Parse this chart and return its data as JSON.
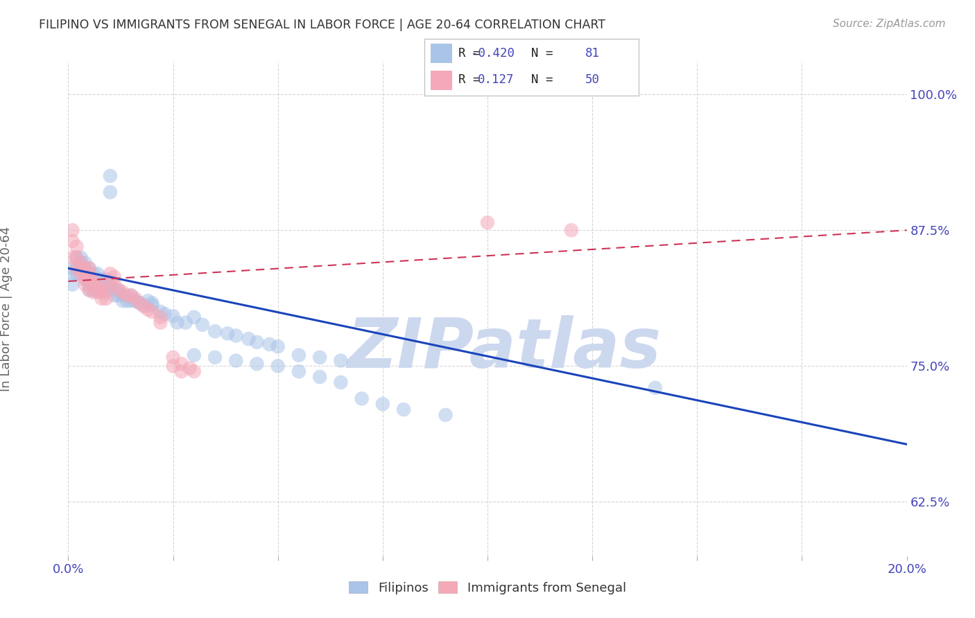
{
  "title": "FILIPINO VS IMMIGRANTS FROM SENEGAL IN LABOR FORCE | AGE 20-64 CORRELATION CHART",
  "source": "Source: ZipAtlas.com",
  "ylabel": "In Labor Force | Age 20-64",
  "xlim": [
    0.0,
    0.2
  ],
  "ylim": [
    0.575,
    1.03
  ],
  "yticks": [
    0.625,
    0.75,
    0.875,
    1.0
  ],
  "ytick_labels": [
    "62.5%",
    "75.0%",
    "87.5%",
    "100.0%"
  ],
  "xticks": [
    0.0,
    0.025,
    0.05,
    0.075,
    0.1,
    0.125,
    0.15,
    0.175,
    0.2
  ],
  "xtick_labels": [
    "0.0%",
    "",
    "",
    "",
    "",
    "",
    "",
    "",
    "20.0%"
  ],
  "blue_color": "#aac4e8",
  "pink_color": "#f4a8b8",
  "blue_line_color": "#1a44bb",
  "pink_line_color": "#cc3355",
  "watermark": "ZIPatlas",
  "legend_R_blue": "-0.420",
  "legend_N_blue": "81",
  "legend_R_pink": "0.127",
  "legend_N_pink": "50",
  "blue_scatter_x": [
    0.001,
    0.001,
    0.001,
    0.002,
    0.002,
    0.002,
    0.003,
    0.003,
    0.003,
    0.003,
    0.004,
    0.004,
    0.004,
    0.004,
    0.005,
    0.005,
    0.005,
    0.005,
    0.005,
    0.006,
    0.006,
    0.006,
    0.006,
    0.007,
    0.007,
    0.007,
    0.007,
    0.008,
    0.008,
    0.008,
    0.009,
    0.009,
    0.009,
    0.01,
    0.01,
    0.01,
    0.011,
    0.011,
    0.012,
    0.012,
    0.013,
    0.013,
    0.014,
    0.015,
    0.015,
    0.016,
    0.017,
    0.018,
    0.019,
    0.02,
    0.02,
    0.022,
    0.023,
    0.025,
    0.026,
    0.028,
    0.03,
    0.032,
    0.035,
    0.038,
    0.04,
    0.043,
    0.045,
    0.048,
    0.05,
    0.055,
    0.06,
    0.065,
    0.03,
    0.035,
    0.04,
    0.045,
    0.05,
    0.055,
    0.06,
    0.065,
    0.07,
    0.075,
    0.08,
    0.09,
    0.14
  ],
  "blue_scatter_y": [
    0.84,
    0.835,
    0.825,
    0.85,
    0.84,
    0.835,
    0.85,
    0.845,
    0.84,
    0.835,
    0.845,
    0.84,
    0.835,
    0.83,
    0.84,
    0.835,
    0.83,
    0.825,
    0.82,
    0.835,
    0.83,
    0.825,
    0.82,
    0.835,
    0.83,
    0.825,
    0.82,
    0.83,
    0.825,
    0.82,
    0.83,
    0.825,
    0.82,
    0.925,
    0.91,
    0.825,
    0.82,
    0.815,
    0.82,
    0.815,
    0.815,
    0.81,
    0.81,
    0.815,
    0.81,
    0.81,
    0.808,
    0.806,
    0.81,
    0.808,
    0.806,
    0.8,
    0.798,
    0.796,
    0.79,
    0.79,
    0.795,
    0.788,
    0.782,
    0.78,
    0.778,
    0.775,
    0.772,
    0.77,
    0.768,
    0.76,
    0.758,
    0.755,
    0.76,
    0.758,
    0.755,
    0.752,
    0.75,
    0.745,
    0.74,
    0.735,
    0.72,
    0.715,
    0.71,
    0.705,
    0.73
  ],
  "pink_scatter_x": [
    0.001,
    0.001,
    0.001,
    0.002,
    0.002,
    0.002,
    0.003,
    0.003,
    0.003,
    0.004,
    0.004,
    0.004,
    0.004,
    0.005,
    0.005,
    0.005,
    0.005,
    0.006,
    0.006,
    0.006,
    0.007,
    0.007,
    0.008,
    0.008,
    0.008,
    0.009,
    0.009,
    0.01,
    0.01,
    0.011,
    0.011,
    0.012,
    0.013,
    0.014,
    0.015,
    0.016,
    0.017,
    0.018,
    0.019,
    0.02,
    0.022,
    0.022,
    0.025,
    0.025,
    0.027,
    0.027,
    0.029,
    0.03,
    0.1,
    0.12
  ],
  "pink_scatter_y": [
    0.875,
    0.865,
    0.85,
    0.86,
    0.85,
    0.84,
    0.845,
    0.84,
    0.835,
    0.84,
    0.835,
    0.83,
    0.825,
    0.84,
    0.835,
    0.83,
    0.82,
    0.83,
    0.825,
    0.818,
    0.825,
    0.818,
    0.822,
    0.818,
    0.812,
    0.818,
    0.812,
    0.835,
    0.828,
    0.832,
    0.825,
    0.82,
    0.818,
    0.815,
    0.815,
    0.812,
    0.808,
    0.805,
    0.802,
    0.8,
    0.795,
    0.79,
    0.758,
    0.75,
    0.752,
    0.745,
    0.748,
    0.745,
    0.882,
    0.875
  ],
  "blue_trend_x": [
    0.0,
    0.2
  ],
  "blue_trend_y": [
    0.84,
    0.678
  ],
  "pink_trend_x": [
    0.0,
    0.2
  ],
  "pink_trend_y": [
    0.828,
    0.875
  ],
  "background_color": "#ffffff",
  "grid_color": "#cccccc",
  "title_color": "#333333",
  "axis_label_color": "#666666",
  "tick_color": "#4444bb",
  "watermark_color": "#ccd8ee"
}
